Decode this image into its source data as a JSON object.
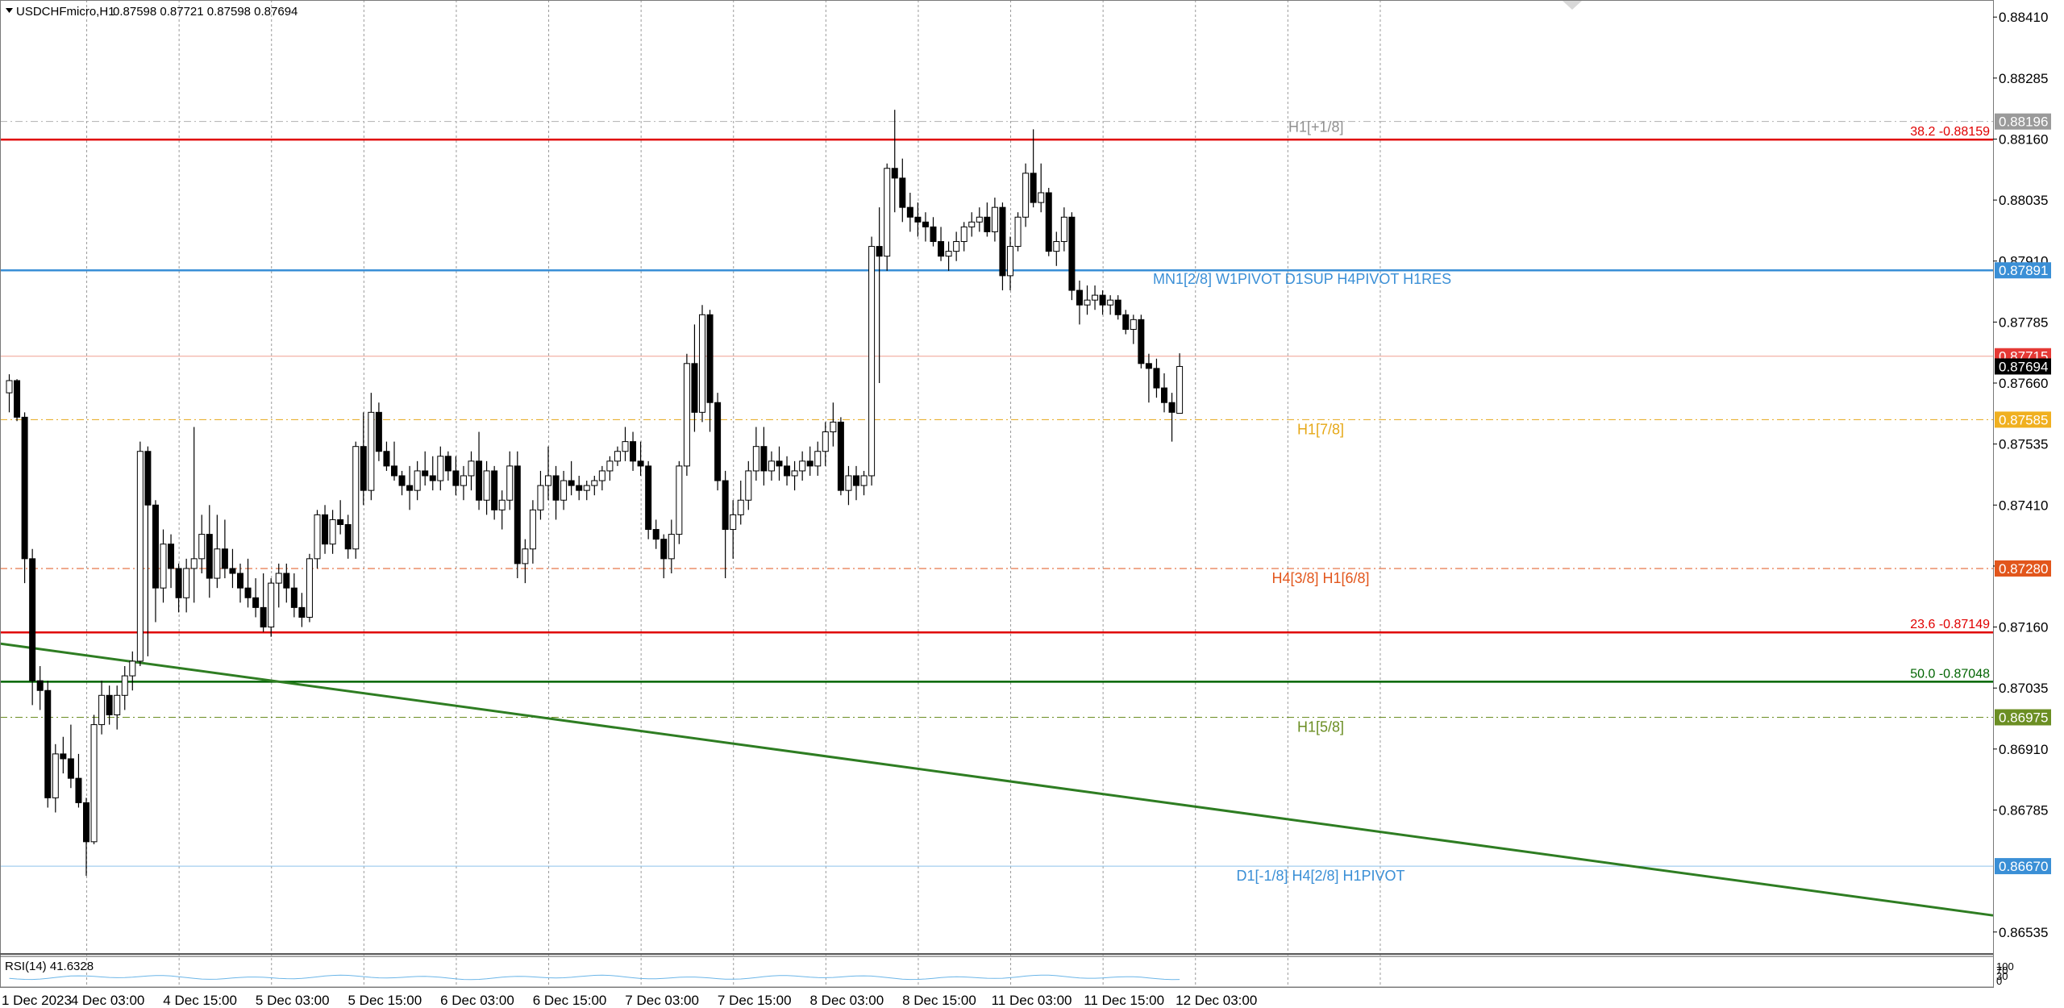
{
  "header": {
    "title": "USDCHFmicro,H1",
    "ohlc": "0.87598 0.87721 0.87598 0.87694"
  },
  "rsi_panel": {
    "label": "RSI(14) 41.6328",
    "scale_top": "100",
    "scale_mid1": "70",
    "scale_mid2": "30",
    "scale_bottom": "0"
  },
  "colors": {
    "fib_red": "#e00000",
    "fib_green": "#006400",
    "pivot_blue": "#3a8fd6",
    "trend_green": "#2e7d22",
    "mm_orange": "#e2561c",
    "mm_yellow": "#e6a817",
    "mm_olive": "#6b8e23",
    "bid_red": "#e53935"
  },
  "chart_data": {
    "type": "candlestick",
    "symbol": "USDCHFmicro",
    "timeframe": "H1",
    "ylim": [
      0.8649,
      0.88445
    ],
    "y_ticks": [
      "0.88410",
      "0.88285",
      "0.88160",
      "0.88035",
      "0.87910",
      "0.87785",
      "0.87660",
      "0.87535",
      "0.87410",
      "0.87285",
      "0.87160",
      "0.87035",
      "0.86910",
      "0.86785",
      "0.86535"
    ],
    "x_ticks": [
      {
        "i": 0,
        "label": "1 Dec 2023"
      },
      {
        "i": 11,
        "label": "4 Dec 03:00"
      },
      {
        "i": 23,
        "label": "4 Dec 15:00"
      },
      {
        "i": 35,
        "label": "5 Dec 03:00"
      },
      {
        "i": 47,
        "label": "5 Dec 15:00"
      },
      {
        "i": 59,
        "label": "6 Dec 03:00"
      },
      {
        "i": 71,
        "label": "6 Dec 15:00"
      },
      {
        "i": 83,
        "label": "7 Dec 03:00"
      },
      {
        "i": 95,
        "label": "7 Dec 15:00"
      },
      {
        "i": 107,
        "label": "8 Dec 03:00"
      },
      {
        "i": 119,
        "label": "8 Dec 15:00"
      },
      {
        "i": 131,
        "label": "11 Dec 03:00"
      },
      {
        "i": 143,
        "label": "11 Dec 15:00"
      },
      {
        "i": 155,
        "label": "12 Dec 03:00"
      }
    ],
    "candles": [
      [
        0.8764,
        0.87678,
        0.876,
        0.87665
      ],
      [
        0.87665,
        0.87668,
        0.87582,
        0.8759
      ],
      [
        0.8759,
        0.876,
        0.8725,
        0.873
      ],
      [
        0.873,
        0.8732,
        0.87,
        0.8705
      ],
      [
        0.8705,
        0.8708,
        0.8699,
        0.8703
      ],
      [
        0.8703,
        0.8705,
        0.8679,
        0.8681
      ],
      [
        0.8681,
        0.8692,
        0.8678,
        0.869
      ],
      [
        0.869,
        0.86935,
        0.8686,
        0.8689
      ],
      [
        0.8689,
        0.8696,
        0.8683,
        0.8685
      ],
      [
        0.8685,
        0.869,
        0.8679,
        0.868
      ],
      [
        0.868,
        0.8681,
        0.8665,
        0.8672
      ],
      [
        0.8672,
        0.8698,
        0.86715,
        0.8696
      ],
      [
        0.8696,
        0.8705,
        0.8694,
        0.8702
      ],
      [
        0.8702,
        0.8704,
        0.8696,
        0.8698
      ],
      [
        0.8698,
        0.8704,
        0.8695,
        0.8702
      ],
      [
        0.8702,
        0.8708,
        0.8699,
        0.8706
      ],
      [
        0.8706,
        0.8711,
        0.8703,
        0.8709
      ],
      [
        0.8709,
        0.8754,
        0.8708,
        0.8752
      ],
      [
        0.8752,
        0.8753,
        0.871,
        0.8741
      ],
      [
        0.8741,
        0.8742,
        0.8717,
        0.8724
      ],
      [
        0.8724,
        0.8736,
        0.8721,
        0.8733
      ],
      [
        0.8733,
        0.8735,
        0.8724,
        0.8728
      ],
      [
        0.8728,
        0.8729,
        0.8719,
        0.8722
      ],
      [
        0.8722,
        0.873,
        0.8719,
        0.8728
      ],
      [
        0.8728,
        0.8757,
        0.8721,
        0.873
      ],
      [
        0.873,
        0.8739,
        0.8727,
        0.8735
      ],
      [
        0.8735,
        0.8741,
        0.8722,
        0.8726
      ],
      [
        0.8726,
        0.8739,
        0.8724,
        0.8732
      ],
      [
        0.8732,
        0.8738,
        0.8726,
        0.8728
      ],
      [
        0.8728,
        0.8732,
        0.8724,
        0.8727
      ],
      [
        0.8727,
        0.8729,
        0.8721,
        0.8724
      ],
      [
        0.8724,
        0.873,
        0.872,
        0.8722
      ],
      [
        0.8722,
        0.8726,
        0.8718,
        0.872
      ],
      [
        0.872,
        0.8727,
        0.8715,
        0.8716
      ],
      [
        0.8716,
        0.8726,
        0.8714,
        0.8725
      ],
      [
        0.8725,
        0.8729,
        0.872,
        0.8727
      ],
      [
        0.8727,
        0.8729,
        0.8721,
        0.8724
      ],
      [
        0.8724,
        0.8727,
        0.8718,
        0.872
      ],
      [
        0.872,
        0.8723,
        0.8716,
        0.8718
      ],
      [
        0.8718,
        0.8731,
        0.8717,
        0.873
      ],
      [
        0.873,
        0.874,
        0.8728,
        0.8739
      ],
      [
        0.8739,
        0.8741,
        0.8731,
        0.8733
      ],
      [
        0.8733,
        0.874,
        0.8731,
        0.8738
      ],
      [
        0.8738,
        0.8742,
        0.8735,
        0.8737
      ],
      [
        0.8737,
        0.8739,
        0.873,
        0.8732
      ],
      [
        0.8732,
        0.8754,
        0.873,
        0.8753
      ],
      [
        0.8753,
        0.876,
        0.8741,
        0.8744
      ],
      [
        0.8744,
        0.8764,
        0.8742,
        0.876
      ],
      [
        0.876,
        0.8762,
        0.875,
        0.8752
      ],
      [
        0.8752,
        0.8754,
        0.8748,
        0.8749
      ],
      [
        0.8749,
        0.8754,
        0.8746,
        0.8747
      ],
      [
        0.8747,
        0.8748,
        0.8743,
        0.8745
      ],
      [
        0.8745,
        0.8749,
        0.874,
        0.8744
      ],
      [
        0.8744,
        0.875,
        0.8742,
        0.8748
      ],
      [
        0.8748,
        0.8752,
        0.8745,
        0.8747
      ],
      [
        0.8747,
        0.8751,
        0.8744,
        0.8746
      ],
      [
        0.8746,
        0.8753,
        0.8744,
        0.8751
      ],
      [
        0.8751,
        0.8752,
        0.8746,
        0.8748
      ],
      [
        0.8748,
        0.8751,
        0.8743,
        0.8745
      ],
      [
        0.8745,
        0.8749,
        0.8742,
        0.8747
      ],
      [
        0.8747,
        0.8752,
        0.8744,
        0.875
      ],
      [
        0.875,
        0.8756,
        0.874,
        0.8742
      ],
      [
        0.8742,
        0.875,
        0.8739,
        0.8748
      ],
      [
        0.8748,
        0.8749,
        0.8738,
        0.874
      ],
      [
        0.874,
        0.8744,
        0.8736,
        0.8742
      ],
      [
        0.8742,
        0.8752,
        0.874,
        0.8749
      ],
      [
        0.8749,
        0.8752,
        0.8726,
        0.8729
      ],
      [
        0.8729,
        0.8734,
        0.8725,
        0.8732
      ],
      [
        0.8732,
        0.8742,
        0.8729,
        0.874
      ],
      [
        0.874,
        0.8748,
        0.8738,
        0.8745
      ],
      [
        0.8745,
        0.8753,
        0.8742,
        0.8747
      ],
      [
        0.8747,
        0.8749,
        0.8738,
        0.8742
      ],
      [
        0.8742,
        0.8748,
        0.874,
        0.8746
      ],
      [
        0.8746,
        0.875,
        0.8743,
        0.8745
      ],
      [
        0.8745,
        0.8747,
        0.8742,
        0.8744
      ],
      [
        0.8744,
        0.8746,
        0.8742,
        0.8745
      ],
      [
        0.8745,
        0.8747,
        0.8743,
        0.8746
      ],
      [
        0.8746,
        0.8749,
        0.8744,
        0.8748
      ],
      [
        0.8748,
        0.8751,
        0.8746,
        0.875
      ],
      [
        0.875,
        0.8753,
        0.8749,
        0.8752
      ],
      [
        0.8752,
        0.8757,
        0.875,
        0.8754
      ],
      [
        0.8754,
        0.8756,
        0.8748,
        0.875
      ],
      [
        0.875,
        0.8754,
        0.8747,
        0.8749
      ],
      [
        0.8749,
        0.875,
        0.8734,
        0.8736
      ],
      [
        0.8736,
        0.8738,
        0.8732,
        0.8734
      ],
      [
        0.8734,
        0.8735,
        0.8726,
        0.873
      ],
      [
        0.873,
        0.8738,
        0.8727,
        0.8735
      ],
      [
        0.8735,
        0.875,
        0.8733,
        0.8749
      ],
      [
        0.8749,
        0.8772,
        0.8747,
        0.877
      ],
      [
        0.877,
        0.8778,
        0.8756,
        0.876
      ],
      [
        0.876,
        0.8782,
        0.8758,
        0.878
      ],
      [
        0.878,
        0.8781,
        0.8756,
        0.8762
      ],
      [
        0.8762,
        0.8764,
        0.8744,
        0.8746
      ],
      [
        0.8746,
        0.8748,
        0.8726,
        0.8736
      ],
      [
        0.8736,
        0.8742,
        0.873,
        0.8739
      ],
      [
        0.8739,
        0.8746,
        0.8737,
        0.8742
      ],
      [
        0.8742,
        0.875,
        0.874,
        0.8748
      ],
      [
        0.8748,
        0.8757,
        0.8746,
        0.8753
      ],
      [
        0.8753,
        0.8757,
        0.8745,
        0.8748
      ],
      [
        0.8748,
        0.8752,
        0.8746,
        0.875
      ],
      [
        0.875,
        0.8753,
        0.8746,
        0.8749
      ],
      [
        0.8749,
        0.8751,
        0.8745,
        0.8747
      ],
      [
        0.8747,
        0.875,
        0.8744,
        0.8748
      ],
      [
        0.8748,
        0.8752,
        0.8746,
        0.875
      ],
      [
        0.875,
        0.8753,
        0.8747,
        0.8749
      ],
      [
        0.8749,
        0.8754,
        0.8747,
        0.8752
      ],
      [
        0.8752,
        0.8758,
        0.8749,
        0.8756
      ],
      [
        0.8756,
        0.8762,
        0.8753,
        0.8758
      ],
      [
        0.8758,
        0.8759,
        0.8743,
        0.8744
      ],
      [
        0.8744,
        0.8749,
        0.8741,
        0.8747
      ],
      [
        0.8747,
        0.8749,
        0.8742,
        0.8745
      ],
      [
        0.8745,
        0.8748,
        0.8743,
        0.8747
      ],
      [
        0.8747,
        0.8796,
        0.8745,
        0.8794
      ],
      [
        0.8794,
        0.8802,
        0.8766,
        0.8792
      ],
      [
        0.8792,
        0.8811,
        0.8789,
        0.881
      ],
      [
        0.881,
        0.8822,
        0.8801,
        0.8808
      ],
      [
        0.8808,
        0.8812,
        0.8799,
        0.8802
      ],
      [
        0.8802,
        0.8805,
        0.8797,
        0.88
      ],
      [
        0.88,
        0.8803,
        0.8796,
        0.8799
      ],
      [
        0.8799,
        0.8801,
        0.8795,
        0.8798
      ],
      [
        0.8798,
        0.88,
        0.8794,
        0.8795
      ],
      [
        0.8795,
        0.8798,
        0.8791,
        0.8792
      ],
      [
        0.8792,
        0.8795,
        0.8789,
        0.8793
      ],
      [
        0.8793,
        0.8797,
        0.8791,
        0.8795
      ],
      [
        0.8795,
        0.8799,
        0.8793,
        0.8798
      ],
      [
        0.8798,
        0.8801,
        0.8796,
        0.8799
      ],
      [
        0.8799,
        0.8802,
        0.8797,
        0.88
      ],
      [
        0.88,
        0.8803,
        0.8796,
        0.8797
      ],
      [
        0.8797,
        0.8804,
        0.8795,
        0.8802
      ],
      [
        0.8802,
        0.8803,
        0.8785,
        0.8788
      ],
      [
        0.8788,
        0.8796,
        0.8785,
        0.8794
      ],
      [
        0.8794,
        0.8801,
        0.8793,
        0.88
      ],
      [
        0.88,
        0.8811,
        0.8798,
        0.8809
      ],
      [
        0.8809,
        0.8818,
        0.8802,
        0.8803
      ],
      [
        0.8803,
        0.8811,
        0.8801,
        0.8805
      ],
      [
        0.8805,
        0.8806,
        0.8792,
        0.8793
      ],
      [
        0.8793,
        0.8797,
        0.879,
        0.8795
      ],
      [
        0.8795,
        0.8802,
        0.8793,
        0.88
      ],
      [
        0.88,
        0.8801,
        0.8783,
        0.8785
      ],
      [
        0.8785,
        0.8787,
        0.8778,
        0.8782
      ],
      [
        0.8782,
        0.8786,
        0.878,
        0.8783
      ],
      [
        0.8783,
        0.8786,
        0.8781,
        0.8784
      ],
      [
        0.8784,
        0.8785,
        0.878,
        0.8782
      ],
      [
        0.8782,
        0.8784,
        0.878,
        0.8783
      ],
      [
        0.8783,
        0.8784,
        0.8779,
        0.878
      ],
      [
        0.878,
        0.8781,
        0.8776,
        0.8777
      ],
      [
        0.8777,
        0.878,
        0.8774,
        0.8779
      ],
      [
        0.8779,
        0.878,
        0.8769,
        0.877
      ],
      [
        0.877,
        0.8772,
        0.8762,
        0.8769
      ],
      [
        0.8769,
        0.8771,
        0.8763,
        0.8765
      ],
      [
        0.8765,
        0.8768,
        0.876,
        0.8762
      ],
      [
        0.8762,
        0.8764,
        0.8754,
        0.876
      ],
      [
        0.87598,
        0.87721,
        0.87598,
        0.87694
      ]
    ],
    "horizontal_levels": [
      {
        "price": 0.88196,
        "label": "H1[+1/8]",
        "axis_label": "0.88196",
        "color": "#b0b0b0",
        "style": "dashdot"
      },
      {
        "price": 0.88159,
        "label": "38.2 -0.88159",
        "axis_label": "",
        "color": "#e00000",
        "style": "solid"
      },
      {
        "price": 0.87891,
        "label": "MN1[2/8] W1PIVOT D1SUP H4PIVOT H1RES",
        "axis_label": "0.87891",
        "color": "#3a8fd6",
        "style": "solid"
      },
      {
        "price": 0.87715,
        "label": "",
        "axis_label": "0.87715",
        "color": "#e53935",
        "style": "bid"
      },
      {
        "price": 0.87694,
        "label": "",
        "axis_label": "0.87694",
        "color": "#000000",
        "style": "none"
      },
      {
        "price": 0.87585,
        "label": "H1[7/8]",
        "axis_label": "0.87585",
        "color": "#e6a817",
        "style": "dashdot"
      },
      {
        "price": 0.8728,
        "label": "H4[3/8] H1[6/8]",
        "axis_label": "0.87280",
        "color": "#e2561c",
        "style": "dashdot"
      },
      {
        "price": 0.87149,
        "label": "23.6 -0.87149",
        "axis_label": "",
        "color": "#e00000",
        "style": "solid"
      },
      {
        "price": 0.87048,
        "label": "50.0 -0.87048",
        "axis_label": "",
        "color": "#006400",
        "style": "solid"
      },
      {
        "price": 0.86975,
        "label": "H1[5/8]",
        "axis_label": "0.86975",
        "color": "#6b8e23",
        "style": "dashdot"
      },
      {
        "price": 0.8667,
        "label": "D1[-1/8] H4[2/8] H1PIVOT",
        "axis_label": "0.86670",
        "color": "#3a8fd6",
        "style": "solid-thin"
      }
    ],
    "trendline": {
      "from": {
        "i": 0,
        "price": 0.87126
      },
      "to": {
        "i": 245,
        "price": 0.86569
      },
      "color": "#2e7d22"
    },
    "rsi": {
      "period": 14,
      "value": 41.6328
    }
  }
}
